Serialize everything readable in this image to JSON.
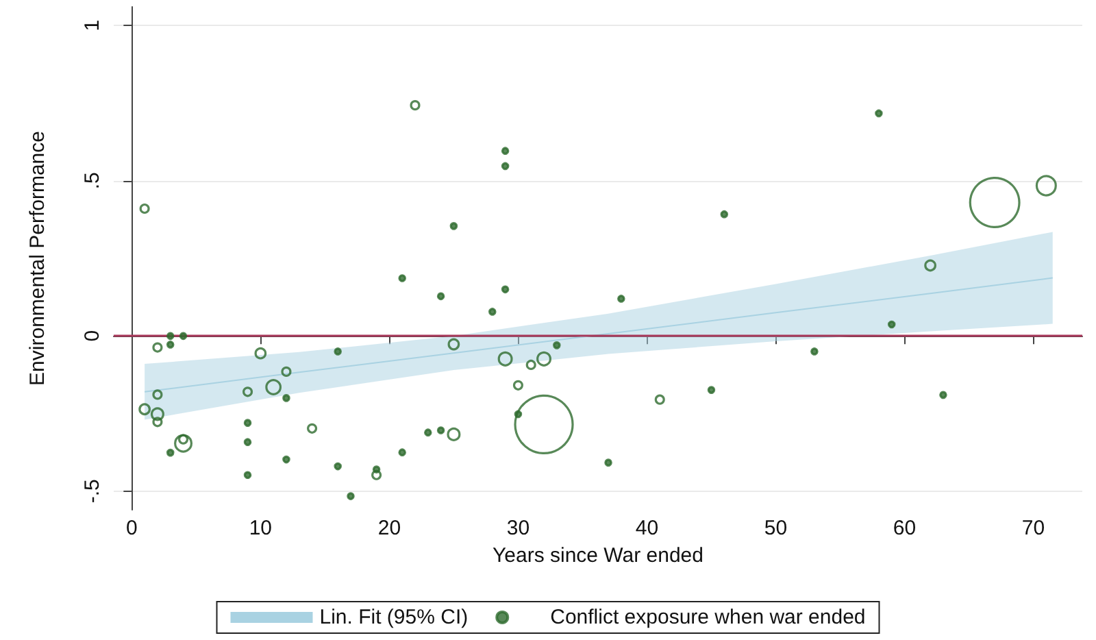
{
  "chart_data": {
    "type": "bubble",
    "xlabel": "Years since War ended",
    "ylabel": "Environmental Performance",
    "xlim": [
      -1.4,
      73.8
    ],
    "xticks": [
      0,
      10,
      20,
      30,
      40,
      50,
      60,
      70
    ],
    "ylim": [
      -0.56,
      1.06
    ],
    "yticks": [
      {
        "value": -0.5,
        "label": "-.5"
      },
      0,
      {
        "value": 0.5,
        "label": ".5"
      },
      1
    ],
    "grid": "y",
    "legend": "bottom",
    "ref_lines": [
      {
        "axis": "y",
        "value": 0,
        "color": "#a8385a"
      }
    ],
    "series": [
      {
        "name": "Lin. Fit (95% CI)",
        "type": "line",
        "color": "#a9d2e2",
        "x": [
          1,
          13,
          25,
          37,
          50,
          62,
          71.5
        ],
        "values": [
          -0.18,
          -0.117,
          -0.055,
          0.007,
          0.075,
          0.137,
          0.187
        ],
        "lower": [
          -0.27,
          -0.183,
          -0.11,
          -0.058,
          -0.017,
          0.015,
          0.039
        ],
        "upper": [
          -0.09,
          -0.052,
          0,
          0.072,
          0.167,
          0.259,
          0.335
        ]
      },
      {
        "name": "Conflict exposure when war ended",
        "color": "#2e6b2e",
        "marker": "circle",
        "x": [
          1,
          22,
          29,
          29,
          25,
          21,
          24,
          29,
          28,
          58,
          46,
          67,
          71,
          38,
          62,
          59,
          3,
          4,
          2,
          3,
          10,
          16,
          25,
          29,
          31,
          32,
          33,
          12,
          11,
          9,
          12,
          2,
          1,
          2,
          2,
          4,
          4,
          3,
          9,
          9,
          9,
          14,
          12,
          16,
          19,
          19,
          17,
          21,
          23,
          24,
          25,
          30,
          30,
          32,
          41,
          45,
          37,
          53,
          63
        ],
        "values": [
          0.41,
          0.743,
          0.596,
          0.547,
          0.354,
          0.186,
          0.128,
          0.15,
          0.078,
          0.717,
          0.392,
          0.43,
          0.484,
          0.12,
          0.227,
          0.037,
          0,
          0,
          -0.037,
          -0.028,
          -0.056,
          -0.05,
          -0.027,
          -0.074,
          -0.093,
          -0.074,
          -0.03,
          -0.115,
          -0.165,
          -0.18,
          -0.2,
          -0.189,
          -0.236,
          -0.252,
          -0.277,
          -0.346,
          -0.333,
          -0.376,
          -0.28,
          -0.342,
          -0.448,
          -0.298,
          -0.398,
          -0.42,
          -0.448,
          -0.43,
          -0.516,
          -0.375,
          -0.311,
          -0.304,
          -0.317,
          -0.159,
          -0.252,
          -0.285,
          -0.205,
          -0.174,
          -0.408,
          -0.05,
          -0.19
        ],
        "sizes": [
          0.02,
          0.02,
          0.01,
          0.01,
          0.01,
          0.01,
          0.01,
          0.01,
          0.01,
          0.01,
          0.01,
          0.73,
          0.11,
          0.01,
          0.03,
          0.01,
          0.01,
          0.01,
          0.02,
          0.01,
          0.03,
          0.01,
          0.03,
          0.05,
          0.02,
          0.05,
          0.01,
          0.02,
          0.06,
          0.02,
          0.01,
          0.02,
          0.03,
          0.04,
          0.02,
          0.08,
          0.02,
          0.01,
          0.01,
          0.01,
          0.01,
          0.02,
          0.01,
          0.01,
          0.02,
          0.01,
          0.01,
          0.01,
          0.01,
          0.01,
          0.04,
          0.02,
          0.01,
          1,
          0.02,
          0.01,
          0.01,
          0.01,
          0.01
        ]
      }
    ]
  }
}
